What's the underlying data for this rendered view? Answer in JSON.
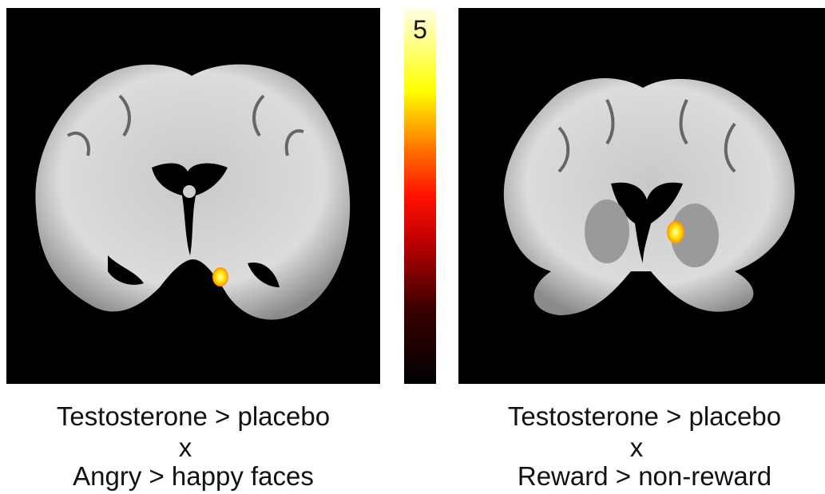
{
  "colorbar": {
    "max": 5
  },
  "panels": [
    {
      "caption": [
        "Testosterone > placebo",
        "x",
        "Angry > happy faces"
      ]
    },
    {
      "caption": [
        "Testosterone > placebo",
        "x",
        "Reward > non-reward"
      ]
    }
  ]
}
